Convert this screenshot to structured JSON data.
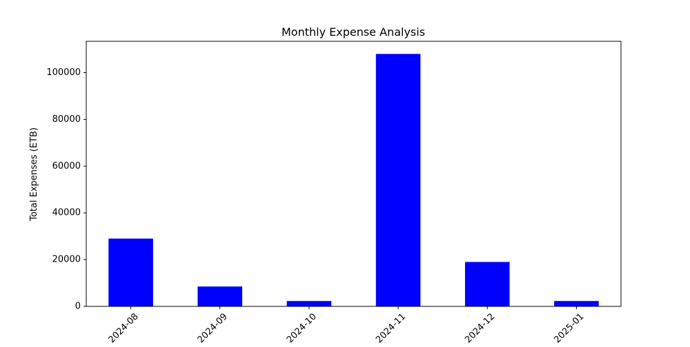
{
  "chart_data": {
    "type": "bar",
    "title": "Monthly Expense Analysis",
    "xlabel": "",
    "ylabel": "Total Expenses (ETB)",
    "categories": [
      "2024-08",
      "2024-09",
      "2024-10",
      "2024-11",
      "2024-12",
      "2025-01"
    ],
    "values": [
      29000,
      8500,
      2300,
      108000,
      19000,
      2300
    ],
    "ylim": [
      0,
      113400
    ],
    "yticks": [
      0,
      20000,
      40000,
      60000,
      80000,
      100000
    ],
    "ytick_labels": [
      "0",
      "20000",
      "40000",
      "60000",
      "80000",
      "100000"
    ],
    "x_tick_rotation_deg": 45,
    "bar_color": "#0000ff",
    "grid": false,
    "legend": "none"
  }
}
